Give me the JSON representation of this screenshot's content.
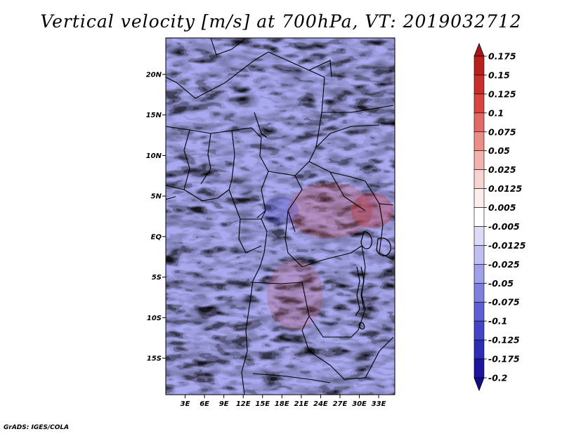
{
  "title": "Vertical velocity [m/s] at 700hPa, VT: 2019032712",
  "footer": "GrADS: IGES/COLA",
  "map": {
    "lon_range": [
      0,
      35.5
    ],
    "lat_range": [
      -19.5,
      24.5
    ],
    "lat_ticks": [
      {
        "value": 20,
        "label": "20N"
      },
      {
        "value": 15,
        "label": "15N"
      },
      {
        "value": 10,
        "label": "10N"
      },
      {
        "value": 5,
        "label": "5N"
      },
      {
        "value": 0,
        "label": "EQ"
      },
      {
        "value": -5,
        "label": "5S"
      },
      {
        "value": -10,
        "label": "10S"
      },
      {
        "value": -15,
        "label": "15S"
      }
    ],
    "lon_ticks": [
      {
        "value": 3,
        "label": "3E"
      },
      {
        "value": 6,
        "label": "6E"
      },
      {
        "value": 9,
        "label": "9E"
      },
      {
        "value": 12,
        "label": "12E"
      },
      {
        "value": 15,
        "label": "15E"
      },
      {
        "value": 18,
        "label": "18E"
      },
      {
        "value": 21,
        "label": "21E"
      },
      {
        "value": 24,
        "label": "24E"
      },
      {
        "value": 27,
        "label": "27E"
      },
      {
        "value": 30,
        "label": "30E"
      },
      {
        "value": 33,
        "label": "33E"
      }
    ]
  },
  "colorbar": {
    "labels": [
      "0.175",
      "0.15",
      "0.125",
      "0.1",
      "0.075",
      "0.05",
      "0.025",
      "0.0125",
      "0.005",
      "-0.005",
      "-0.0125",
      "-0.025",
      "-0.05",
      "-0.075",
      "-0.1",
      "-0.125",
      "-0.175",
      "-0.2"
    ],
    "colors": [
      "#a81418",
      "#b8201e",
      "#c92e2c",
      "#d84440",
      "#e36a64",
      "#ec8e88",
      "#f4b2ad",
      "#f9d3d0",
      "#fdeeec",
      "#ffffff",
      "#dcdcf8",
      "#bfbff2",
      "#9f9fea",
      "#7f7fe0",
      "#5f5fd4",
      "#4444c6",
      "#2c2cb4",
      "#1e14a0",
      "#140c88"
    ]
  }
}
